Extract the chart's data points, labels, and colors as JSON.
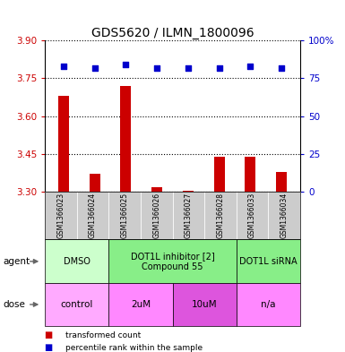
{
  "title": "GDS5620 / ILMN_1800096",
  "samples": [
    "GSM1366023",
    "GSM1366024",
    "GSM1366025",
    "GSM1366026",
    "GSM1366027",
    "GSM1366028",
    "GSM1366033",
    "GSM1366034"
  ],
  "bar_values": [
    3.68,
    3.37,
    3.72,
    3.32,
    3.305,
    3.44,
    3.44,
    3.38
  ],
  "percentile_values": [
    83,
    82,
    84,
    82,
    82,
    82,
    83,
    82
  ],
  "ylim_left": [
    3.3,
    3.9
  ],
  "ylim_right": [
    0,
    100
  ],
  "yticks_left": [
    3.3,
    3.45,
    3.6,
    3.75,
    3.9
  ],
  "yticks_right": [
    0,
    25,
    50,
    75,
    100
  ],
  "bar_color": "#cc0000",
  "dot_color": "#0000cc",
  "agent_groups": [
    {
      "label": "DMSO",
      "start": 0,
      "end": 2,
      "color": "#ccffcc"
    },
    {
      "label": "DOT1L inhibitor [2]\nCompound 55",
      "start": 2,
      "end": 6,
      "color": "#88ee88"
    },
    {
      "label": "DOT1L siRNA",
      "start": 6,
      "end": 8,
      "color": "#88ee88"
    }
  ],
  "dose_groups": [
    {
      "label": "control",
      "start": 0,
      "end": 2,
      "color": "#ffaaff"
    },
    {
      "label": "2uM",
      "start": 2,
      "end": 4,
      "color": "#ff88ff"
    },
    {
      "label": "10uM",
      "start": 4,
      "end": 6,
      "color": "#dd55dd"
    },
    {
      "label": "n/a",
      "start": 6,
      "end": 8,
      "color": "#ff88ff"
    }
  ],
  "legend_labels": [
    "transformed count",
    "percentile rank within the sample"
  ],
  "legend_colors": [
    "#cc0000",
    "#0000cc"
  ],
  "left_axis_color": "#cc0000",
  "right_axis_color": "#0000cc",
  "sample_bg_color": "#cccccc",
  "bar_width": 0.35
}
